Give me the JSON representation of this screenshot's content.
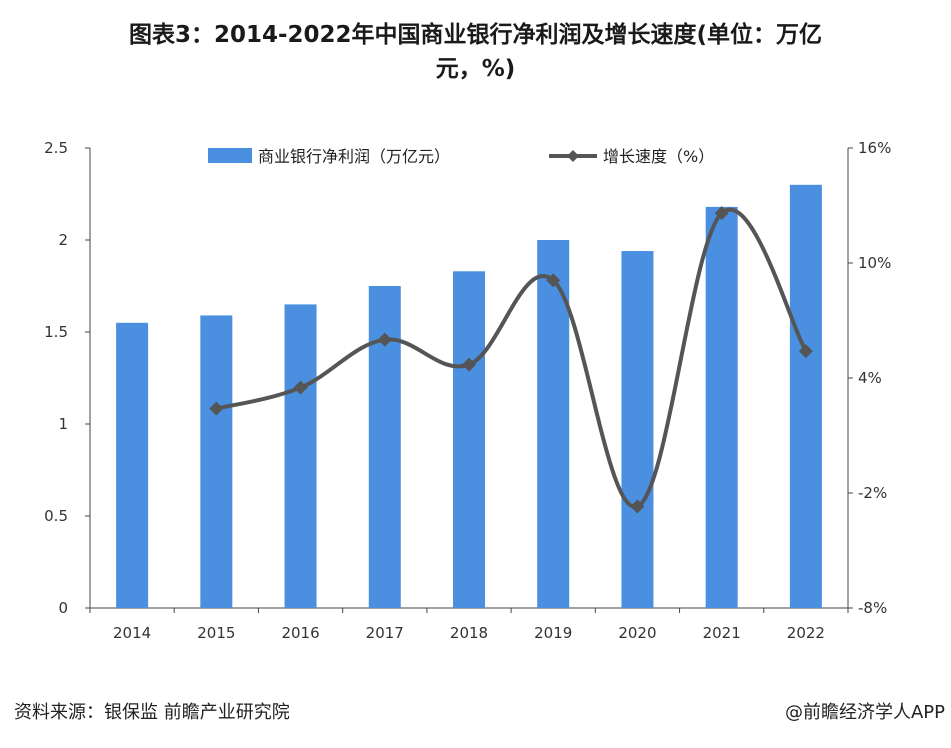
{
  "title_line1": "图表3：2014-2022年中国商业银行净利润及增长速度(单位：万亿",
  "title_line2": "元，%)",
  "source": "资料来源：银保监 前瞻产业研究院",
  "credit": "@前瞻经济学人APP",
  "colors": {
    "bar": "#4a8fe0",
    "line": "#555555",
    "axis": "#444444"
  },
  "chart_data": {
    "type": "bar+line",
    "categories": [
      "2014",
      "2015",
      "2016",
      "2017",
      "2018",
      "2019",
      "2020",
      "2021",
      "2022"
    ],
    "series": [
      {
        "name": "商业银行净利润（万亿元）",
        "type": "bar",
        "axis": "left",
        "values": [
          1.55,
          1.59,
          1.65,
          1.75,
          1.83,
          2.0,
          1.94,
          2.18,
          2.3
        ]
      },
      {
        "name": "增长速度（%）",
        "type": "line",
        "axis": "right",
        "values": [
          null,
          2.4,
          3.5,
          6.0,
          4.7,
          9.1,
          -2.7,
          12.6,
          5.4
        ]
      }
    ],
    "y_left": {
      "range": [
        0,
        2.5
      ],
      "ticks": [
        "0",
        "0.5",
        "1",
        "1.5",
        "2",
        "2.5"
      ]
    },
    "y_right": {
      "range": [
        -8,
        16
      ],
      "ticks": [
        "-8%",
        "-2%",
        "4%",
        "10%",
        "16%"
      ]
    },
    "legend_position": "top",
    "grid": false
  }
}
